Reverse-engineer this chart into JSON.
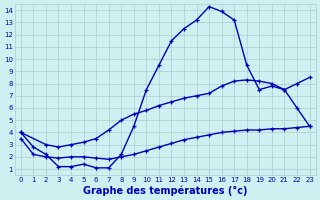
{
  "title": "Graphe des températures (°c)",
  "background_color": "#cff0f0",
  "grid_color": "#a8cece",
  "line_color": "#0000bb",
  "xlim": [
    -0.5,
    23.5
  ],
  "ylim": [
    0.5,
    14.5
  ],
  "xticks": [
    0,
    1,
    2,
    3,
    4,
    5,
    6,
    7,
    8,
    9,
    10,
    11,
    12,
    13,
    14,
    15,
    16,
    17,
    18,
    19,
    20,
    21,
    22,
    23
  ],
  "yticks": [
    1,
    2,
    3,
    4,
    5,
    6,
    7,
    8,
    9,
    10,
    11,
    12,
    13,
    14
  ],
  "line1_x": [
    0,
    1,
    2,
    3,
    4,
    5,
    6,
    7,
    8,
    9,
    10,
    11,
    12,
    13,
    14,
    15,
    16,
    17,
    18,
    19,
    20,
    21,
    22,
    23
  ],
  "line1_y": [
    4.0,
    2.8,
    2.2,
    1.2,
    1.2,
    1.4,
    1.1,
    1.1,
    2.2,
    4.5,
    7.5,
    9.5,
    11.5,
    12.5,
    13.2,
    14.3,
    13.9,
    13.2,
    9.5,
    7.5,
    7.8,
    7.5,
    6.0,
    4.5
  ],
  "line2_x": [
    0,
    2,
    3,
    4,
    5,
    6,
    7,
    8,
    9,
    10,
    11,
    12,
    13,
    14,
    15,
    16,
    17,
    18,
    19,
    20,
    21,
    22,
    23
  ],
  "line2_y": [
    4.0,
    3.0,
    2.8,
    3.0,
    3.2,
    3.5,
    4.2,
    5.0,
    5.5,
    5.8,
    6.2,
    6.5,
    6.8,
    7.0,
    7.2,
    7.8,
    8.2,
    8.3,
    8.2,
    8.0,
    7.5,
    8.0,
    8.5
  ],
  "line3_x": [
    0,
    1,
    2,
    3,
    4,
    5,
    6,
    7,
    8,
    9,
    10,
    11,
    12,
    13,
    14,
    15,
    16,
    17,
    18,
    19,
    20,
    21,
    22,
    23
  ],
  "line3_y": [
    3.5,
    2.2,
    2.0,
    1.9,
    2.0,
    2.0,
    1.9,
    1.8,
    2.0,
    2.2,
    2.5,
    2.8,
    3.1,
    3.4,
    3.6,
    3.8,
    4.0,
    4.1,
    4.2,
    4.2,
    4.3,
    4.3,
    4.4,
    4.5
  ],
  "marker": "+",
  "marker_size": 3.5,
  "line_width": 1.0,
  "tick_fontsize": 5.0,
  "xlabel_fontsize": 7.0
}
